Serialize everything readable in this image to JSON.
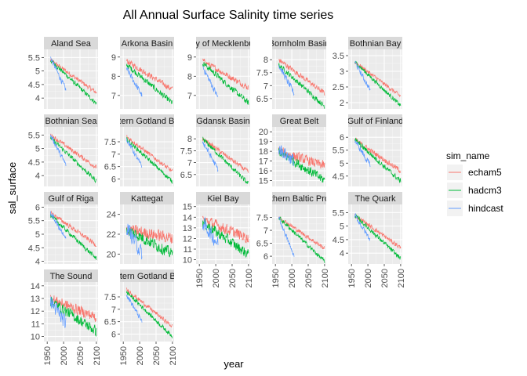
{
  "chart_data": {
    "type": "line",
    "title": "All Annual Surface Salinity time series",
    "xlabel": "year",
    "ylabel": "sal_surface",
    "xlim": [
      1940,
      2105
    ],
    "x_ticks": [
      1950,
      2000,
      2050,
      2100
    ],
    "grid": true,
    "legend": {
      "title": "sim_name",
      "placement": "right",
      "entries": [
        {
          "name": "echam5",
          "color": "#F8766D"
        },
        {
          "name": "hadcm3",
          "color": "#00BA38"
        },
        {
          "name": "hindcast",
          "color": "#619CFF"
        }
      ]
    },
    "series_defaults": {
      "echam5": {
        "x_range": [
          1960,
          2100
        ]
      },
      "hadcm3": {
        "x_range": [
          1960,
          2100
        ]
      },
      "hindcast": {
        "x_range": [
          1960,
          2007
        ]
      }
    },
    "panels": [
      {
        "name": "Aland Sea",
        "ylim": [
          3.6,
          5.8
        ],
        "y_ticks": [
          4.0,
          4.5,
          5.0,
          5.5
        ],
        "series": {
          "echam5": {
            "start": 5.4,
            "end": 4.2,
            "noise": 0.1
          },
          "hadcm3": {
            "start": 5.4,
            "end": 3.8,
            "noise": 0.1
          },
          "hindcast": {
            "start": 5.5,
            "end": 4.3,
            "noise": 0.12
          }
        }
      },
      {
        "name": "Arkona Basin",
        "ylim": [
          6.3,
          9.4
        ],
        "y_ticks": [
          7,
          8,
          9
        ],
        "series": {
          "echam5": {
            "start": 8.8,
            "end": 7.3,
            "noise": 0.18
          },
          "hadcm3": {
            "start": 8.6,
            "end": 6.6,
            "noise": 0.18
          },
          "hindcast": {
            "start": 8.4,
            "end": 7.0,
            "noise": 0.2
          }
        }
      },
      {
        "name": "Bay of Mecklenburg",
        "ylim": [
          6.3,
          9.4
        ],
        "y_ticks": [
          7,
          8,
          9
        ],
        "series": {
          "echam5": {
            "start": 8.8,
            "end": 7.4,
            "noise": 0.18
          },
          "hadcm3": {
            "start": 8.7,
            "end": 6.6,
            "noise": 0.18
          },
          "hindcast": {
            "start": 8.5,
            "end": 6.9,
            "noise": 0.2
          }
        }
      },
      {
        "name": "Bornholm Basin",
        "ylim": [
          6.1,
          8.4
        ],
        "y_ticks": [
          6.5,
          7.0,
          7.5,
          8.0
        ],
        "series": {
          "echam5": {
            "start": 8.0,
            "end": 6.7,
            "noise": 0.12
          },
          "hadcm3": {
            "start": 7.8,
            "end": 6.2,
            "noise": 0.12
          },
          "hindcast": {
            "start": 7.8,
            "end": 6.7,
            "noise": 0.15
          }
        }
      },
      {
        "name": "Bothnian Bay",
        "ylim": [
          1.8,
          3.7
        ],
        "y_ticks": [
          2.0,
          2.5,
          3.0,
          3.5
        ],
        "series": {
          "echam5": {
            "start": 3.3,
            "end": 2.2,
            "noise": 0.08
          },
          "hadcm3": {
            "start": 3.3,
            "end": 1.9,
            "noise": 0.08
          },
          "hindcast": {
            "start": 3.3,
            "end": 2.4,
            "noise": 0.1
          }
        }
      },
      {
        "name": "Bothnian Sea",
        "ylim": [
          3.6,
          5.8
        ],
        "y_ticks": [
          4.0,
          4.5,
          5.0,
          5.5
        ],
        "series": {
          "echam5": {
            "start": 5.5,
            "end": 4.3,
            "noise": 0.1
          },
          "hadcm3": {
            "start": 5.4,
            "end": 3.8,
            "noise": 0.1
          },
          "hindcast": {
            "start": 5.5,
            "end": 4.4,
            "noise": 0.12
          }
        }
      },
      {
        "name": "Eastern Gotland Basin",
        "ylim": [
          5.7,
          8.1
        ],
        "y_ticks": [
          6.0,
          6.5,
          7.0,
          7.5
        ],
        "series": {
          "echam5": {
            "start": 7.7,
            "end": 6.3,
            "noise": 0.1
          },
          "hadcm3": {
            "start": 7.6,
            "end": 5.9,
            "noise": 0.1
          },
          "hindcast": {
            "start": 7.6,
            "end": 6.5,
            "noise": 0.12
          }
        }
      },
      {
        "name": "Gdansk Basin",
        "ylim": [
          6.0,
          8.5
        ],
        "y_ticks": [
          6.5,
          7.0,
          7.5,
          8.0
        ],
        "series": {
          "echam5": {
            "start": 8.0,
            "end": 6.6,
            "noise": 0.12
          },
          "hadcm3": {
            "start": 8.0,
            "end": 6.1,
            "noise": 0.12
          },
          "hindcast": {
            "start": 7.9,
            "end": 6.7,
            "noise": 0.15
          }
        }
      },
      {
        "name": "Great Belt",
        "ylim": [
          14.4,
          20.5
        ],
        "y_ticks": [
          15,
          16,
          17,
          18,
          19,
          20
        ],
        "series": {
          "echam5": {
            "start": 18.0,
            "end": 16.5,
            "noise": 0.6
          },
          "hadcm3": {
            "start": 18.0,
            "end": 15.0,
            "noise": 0.6
          },
          "hindcast": {
            "start": 18.3,
            "end": 17.0,
            "noise": 0.8
          }
        }
      },
      {
        "name": "Gulf of Finland",
        "ylim": [
          4.1,
          6.4
        ],
        "y_ticks": [
          4.5,
          5.0,
          5.5,
          6.0
        ],
        "series": {
          "echam5": {
            "start": 5.9,
            "end": 4.7,
            "noise": 0.12
          },
          "hadcm3": {
            "start": 5.9,
            "end": 4.3,
            "noise": 0.12
          },
          "hindcast": {
            "start": 5.9,
            "end": 4.9,
            "noise": 0.15
          }
        }
      },
      {
        "name": "Gulf of Riga",
        "ylim": [
          3.9,
          6.1
        ],
        "y_ticks": [
          4.0,
          4.5,
          5.0,
          5.5,
          6.0
        ],
        "series": {
          "echam5": {
            "start": 5.8,
            "end": 4.6,
            "noise": 0.1
          },
          "hadcm3": {
            "start": 5.7,
            "end": 4.1,
            "noise": 0.1
          },
          "hindcast": {
            "start": 5.8,
            "end": 4.8,
            "noise": 0.12
          }
        }
      },
      {
        "name": "Kattegat",
        "ylim": [
          19.0,
          25.0
        ],
        "y_ticks": [
          20,
          22,
          24
        ],
        "series": {
          "echam5": {
            "start": 22.5,
            "end": 21.6,
            "noise": 0.7
          },
          "hadcm3": {
            "start": 22.5,
            "end": 20.0,
            "noise": 0.7
          },
          "hindcast": {
            "start": 22.8,
            "end": 20.0,
            "noise": 0.9
          }
        }
      },
      {
        "name": "Kiel Bay",
        "ylim": [
          9.6,
          15.2
        ],
        "y_ticks": [
          10,
          11,
          12,
          13,
          14,
          15
        ],
        "series": {
          "echam5": {
            "start": 13.8,
            "end": 12.0,
            "noise": 0.6
          },
          "hadcm3": {
            "start": 13.5,
            "end": 10.5,
            "noise": 0.6
          },
          "hindcast": {
            "start": 13.5,
            "end": 11.5,
            "noise": 0.8
          }
        }
      },
      {
        "name": "Northern Baltic Proper",
        "ylim": [
          5.7,
          8.0
        ],
        "y_ticks": [
          6.0,
          6.5,
          7.0,
          7.5
        ],
        "series": {
          "echam5": {
            "start": 7.5,
            "end": 6.3,
            "noise": 0.1
          },
          "hadcm3": {
            "start": 7.5,
            "end": 5.8,
            "noise": 0.1
          },
          "hindcast": {
            "start": 7.5,
            "end": 6.0,
            "noise": 0.12
          }
        }
      },
      {
        "name": "The Quark",
        "ylim": [
          3.6,
          5.8
        ],
        "y_ticks": [
          4.0,
          4.5,
          5.0,
          5.5
        ],
        "series": {
          "echam5": {
            "start": 5.4,
            "end": 4.2,
            "noise": 0.1
          },
          "hadcm3": {
            "start": 5.4,
            "end": 3.8,
            "noise": 0.1
          },
          "hindcast": {
            "start": 5.4,
            "end": 4.5,
            "noise": 0.12
          }
        }
      },
      {
        "name": "The Sound",
        "ylim": [
          9.6,
          14.3
        ],
        "y_ticks": [
          10,
          11,
          12,
          13,
          14
        ],
        "series": {
          "echam5": {
            "start": 13.0,
            "end": 11.5,
            "noise": 0.5
          },
          "hadcm3": {
            "start": 12.8,
            "end": 10.4,
            "noise": 0.5
          },
          "hindcast": {
            "start": 12.8,
            "end": 11.0,
            "noise": 0.7
          }
        }
      },
      {
        "name": "Western Gotland Basin",
        "ylim": [
          5.7,
          8.1
        ],
        "y_ticks": [
          6.0,
          6.5,
          7.0,
          7.5
        ],
        "series": {
          "echam5": {
            "start": 7.8,
            "end": 6.3,
            "noise": 0.1
          },
          "hadcm3": {
            "start": 7.7,
            "end": 5.9,
            "noise": 0.1
          },
          "hindcast": {
            "start": 7.6,
            "end": 6.5,
            "noise": 0.12
          }
        }
      }
    ]
  }
}
